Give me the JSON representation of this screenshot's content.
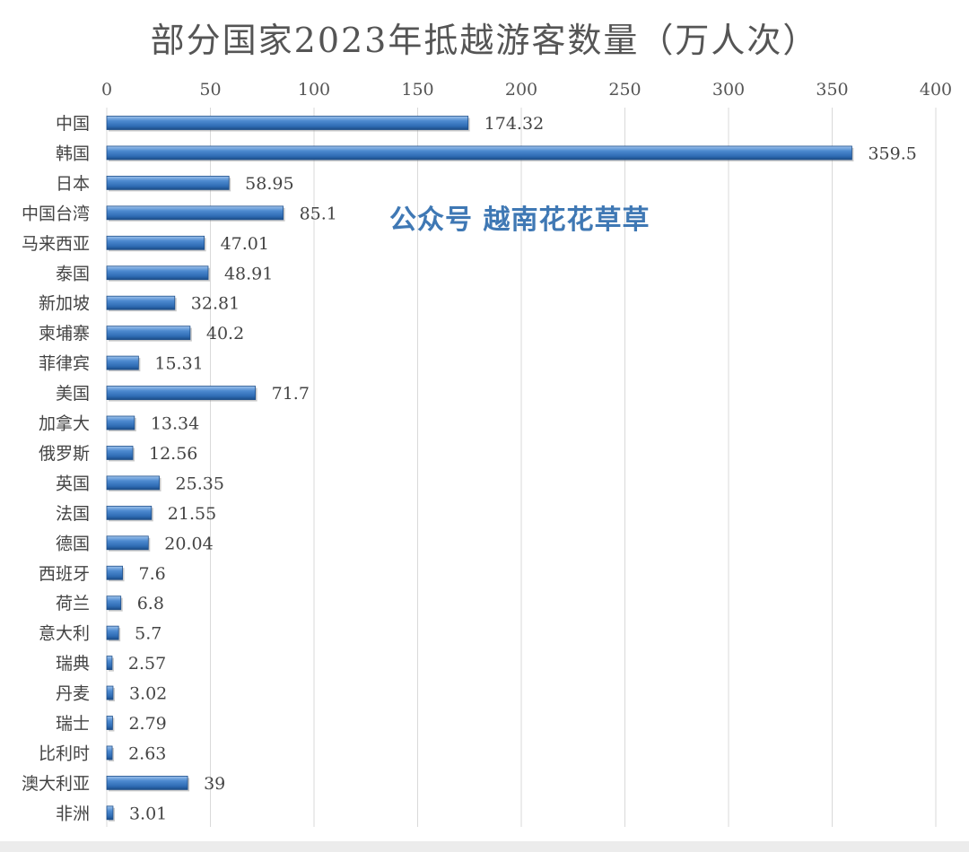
{
  "chart_data": {
    "type": "bar",
    "orientation": "horizontal",
    "title": "部分国家2023年抵越游客数量（万人次）",
    "categories": [
      "中国",
      "韩国",
      "日本",
      "中国台湾",
      "马来西亚",
      "泰国",
      "新加坡",
      "柬埔寨",
      "菲律宾",
      "美国",
      "加拿大",
      "俄罗斯",
      "英国",
      "法国",
      "德国",
      "西班牙",
      "荷兰",
      "意大利",
      "瑞典",
      "丹麦",
      "瑞士",
      "比利时",
      "澳大利亚",
      "非洲"
    ],
    "values": [
      174.32,
      359.5,
      58.95,
      85.1,
      47.01,
      48.91,
      32.81,
      40.2,
      15.31,
      71.7,
      13.34,
      12.56,
      25.35,
      21.55,
      20.04,
      7.6,
      6.8,
      5.7,
      2.57,
      3.02,
      2.79,
      2.63,
      39,
      3.01
    ],
    "value_labels": [
      "174.32",
      "359.5",
      "58.95",
      "85.1",
      "47.01",
      "48.91",
      "32.81",
      "40.2",
      "15.31",
      "71.7",
      "13.34",
      "12.56",
      "25.35",
      "21.55",
      "20.04",
      "7.6",
      "6.8",
      "5.7",
      "2.57",
      "3.02",
      "2.79",
      "2.63",
      "39",
      "3.01"
    ],
    "xlim": [
      0,
      400
    ],
    "xticks": [
      "0",
      "50",
      "100",
      "150",
      "200",
      "250",
      "300",
      "350",
      "400"
    ],
    "axis_position": "top",
    "grid": true,
    "legend": "none",
    "bar_color": "#3b78c2"
  },
  "watermark": "公众号  越南花花草草"
}
